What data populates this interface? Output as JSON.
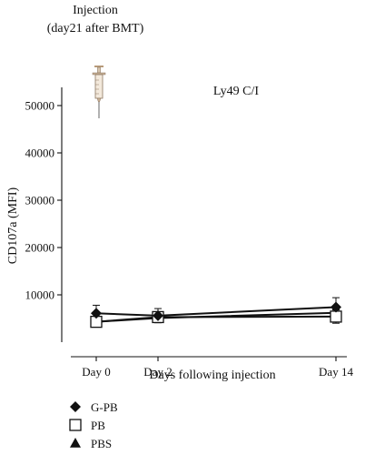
{
  "chart_data": {
    "type": "line",
    "annotation": [
      "Injection",
      "(day21 after BMT)"
    ],
    "subtitle": "Ly49 C/I",
    "xlabel": "Days following injection",
    "ylabel": "CD107a (MFI)",
    "x_categories": [
      "Day 0",
      "Day 2",
      "Day 14"
    ],
    "x_days": [
      0,
      2,
      14
    ],
    "ylim": [
      0,
      55000
    ],
    "yticks": [
      10000,
      20000,
      30000,
      40000,
      50000
    ],
    "ytick_labels": [
      "10000",
      "20000",
      "30000",
      "40000",
      "50000"
    ],
    "grid": false,
    "legend_position": "bottom-left",
    "series": [
      {
        "name": "G-PB",
        "marker": "filled-diamond",
        "values": [
          6100,
          5600,
          7400
        ],
        "errors": [
          1700,
          1500,
          2000
        ]
      },
      {
        "name": "PB",
        "marker": "open-square",
        "values": [
          4300,
          5300,
          5400
        ],
        "errors": [
          1100,
          1000,
          1400
        ]
      },
      {
        "name": "PBS",
        "marker": "filled-triangle",
        "values": [
          4300,
          5100,
          6200
        ],
        "errors": [
          600,
          600,
          700
        ]
      }
    ],
    "icon": "syringe-icon",
    "colors": {
      "ink": "#111111",
      "syringe_barrel": "#f3e9dc",
      "syringe_plunger": "#d8c7b0"
    }
  }
}
